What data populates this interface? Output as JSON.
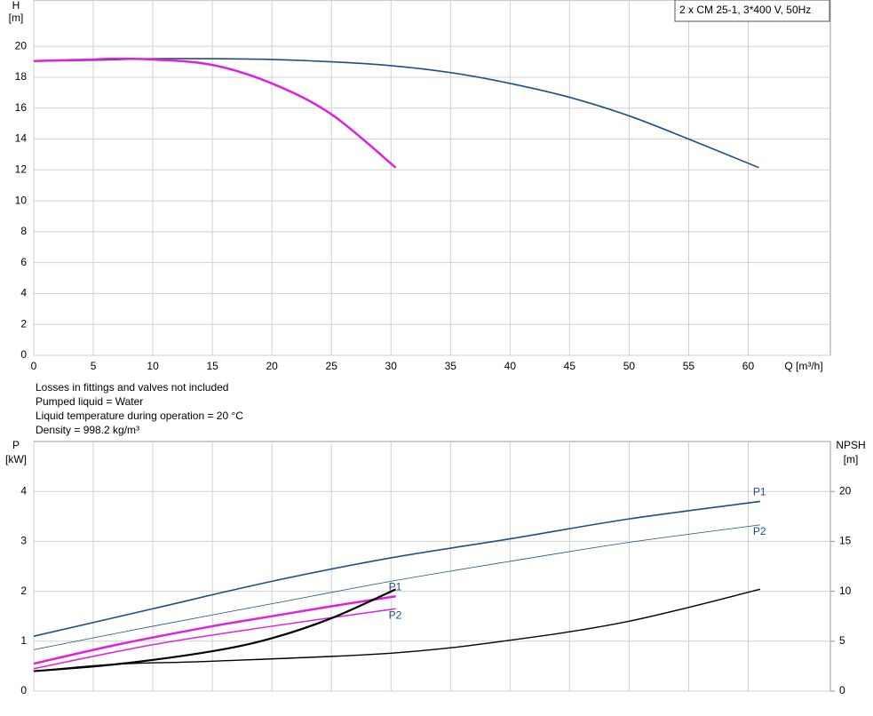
{
  "chart_data": [
    {
      "type": "line",
      "title": "2 x CM 25-1, 3*400 V, 50Hz",
      "ylabel": "H",
      "yunit": "[m]",
      "xlabel": "Q [m³/h]",
      "xlim": [
        0,
        66.9
      ],
      "xticks": [
        0,
        5,
        10,
        15,
        20,
        25,
        30,
        35,
        40,
        45,
        50,
        55,
        60
      ],
      "ylim": [
        0,
        23
      ],
      "yticks": [
        0,
        2,
        4,
        6,
        8,
        10,
        12,
        14,
        16,
        18,
        20
      ],
      "grid": true,
      "annotations": [
        "Losses in fittings and valves not included",
        "Pumped liquid = Water",
        "Liquid temperature during operation = 20 °C",
        "Density = 998.2 kg/m³"
      ],
      "series": [
        {
          "color": "#1f4e85",
          "line_width": 1.6,
          "x": [
            0,
            5,
            10,
            15,
            20,
            25,
            30,
            35,
            40,
            45,
            50,
            55,
            60.9
          ],
          "values": [
            19.05,
            19.1,
            19.2,
            19.2,
            19.15,
            19.0,
            18.75,
            18.3,
            17.6,
            16.7,
            15.5,
            14.0,
            12.15
          ]
        },
        {
          "color": "#dd22dd",
          "line_width": 2.5,
          "x": [
            0,
            5,
            7,
            10,
            15,
            20,
            25,
            30.4
          ],
          "values": [
            19.05,
            19.15,
            19.2,
            19.15,
            18.8,
            17.6,
            15.6,
            12.15
          ]
        }
      ]
    },
    {
      "type": "line",
      "ylabel": "P",
      "yunit": "[kW]",
      "y2label": "NPSH",
      "y2unit": "[m]",
      "xlim": [
        0,
        66.9
      ],
      "xticks": [
        0,
        5,
        10,
        15,
        20,
        25,
        30,
        35,
        40,
        45,
        50,
        55,
        60
      ],
      "ylim": [
        0,
        5
      ],
      "yticks": [
        0,
        1,
        2,
        3,
        4
      ],
      "y2lim": [
        0,
        25
      ],
      "y2ticks": [
        0,
        5,
        10,
        15,
        20
      ],
      "grid": true,
      "series": [
        {
          "name": "P1",
          "color": "#1f4e85",
          "line_width": 1.6,
          "x": [
            0,
            10,
            20,
            30,
            40,
            50,
            61
          ],
          "values": [
            1.1,
            1.65,
            2.2,
            2.67,
            3.05,
            3.45,
            3.8
          ]
        },
        {
          "name": "P2",
          "color": "#1f4e85",
          "line_width": 0.8,
          "x": [
            0,
            10,
            20,
            30,
            40,
            50,
            61
          ],
          "values": [
            0.83,
            1.3,
            1.75,
            2.2,
            2.6,
            2.98,
            3.33
          ]
        },
        {
          "name": "P1",
          "color": "#dd22dd",
          "line_width": 2.5,
          "x": [
            0,
            7,
            15,
            20,
            25,
            30.4
          ],
          "values": [
            0.55,
            0.93,
            1.3,
            1.5,
            1.7,
            1.9
          ]
        },
        {
          "name": "P2",
          "color": "#dd22dd",
          "line_width": 1.5,
          "x": [
            0,
            10,
            20,
            30.4
          ],
          "values": [
            0.45,
            0.93,
            1.3,
            1.65
          ]
        },
        {
          "color": "#000000",
          "line_width": 2.2,
          "axis": "y2",
          "x": [
            0,
            7,
            15,
            20,
            25,
            30.4
          ],
          "values": [
            2.0,
            2.7,
            4.0,
            5.3,
            7.3,
            10.2
          ]
        },
        {
          "color": "#000000",
          "line_width": 1.4,
          "axis": "y2",
          "x": [
            0,
            7,
            15,
            30,
            40,
            50,
            61
          ],
          "values": [
            2.0,
            2.7,
            3.0,
            3.8,
            5.1,
            7.0,
            10.2
          ]
        }
      ]
    }
  ]
}
